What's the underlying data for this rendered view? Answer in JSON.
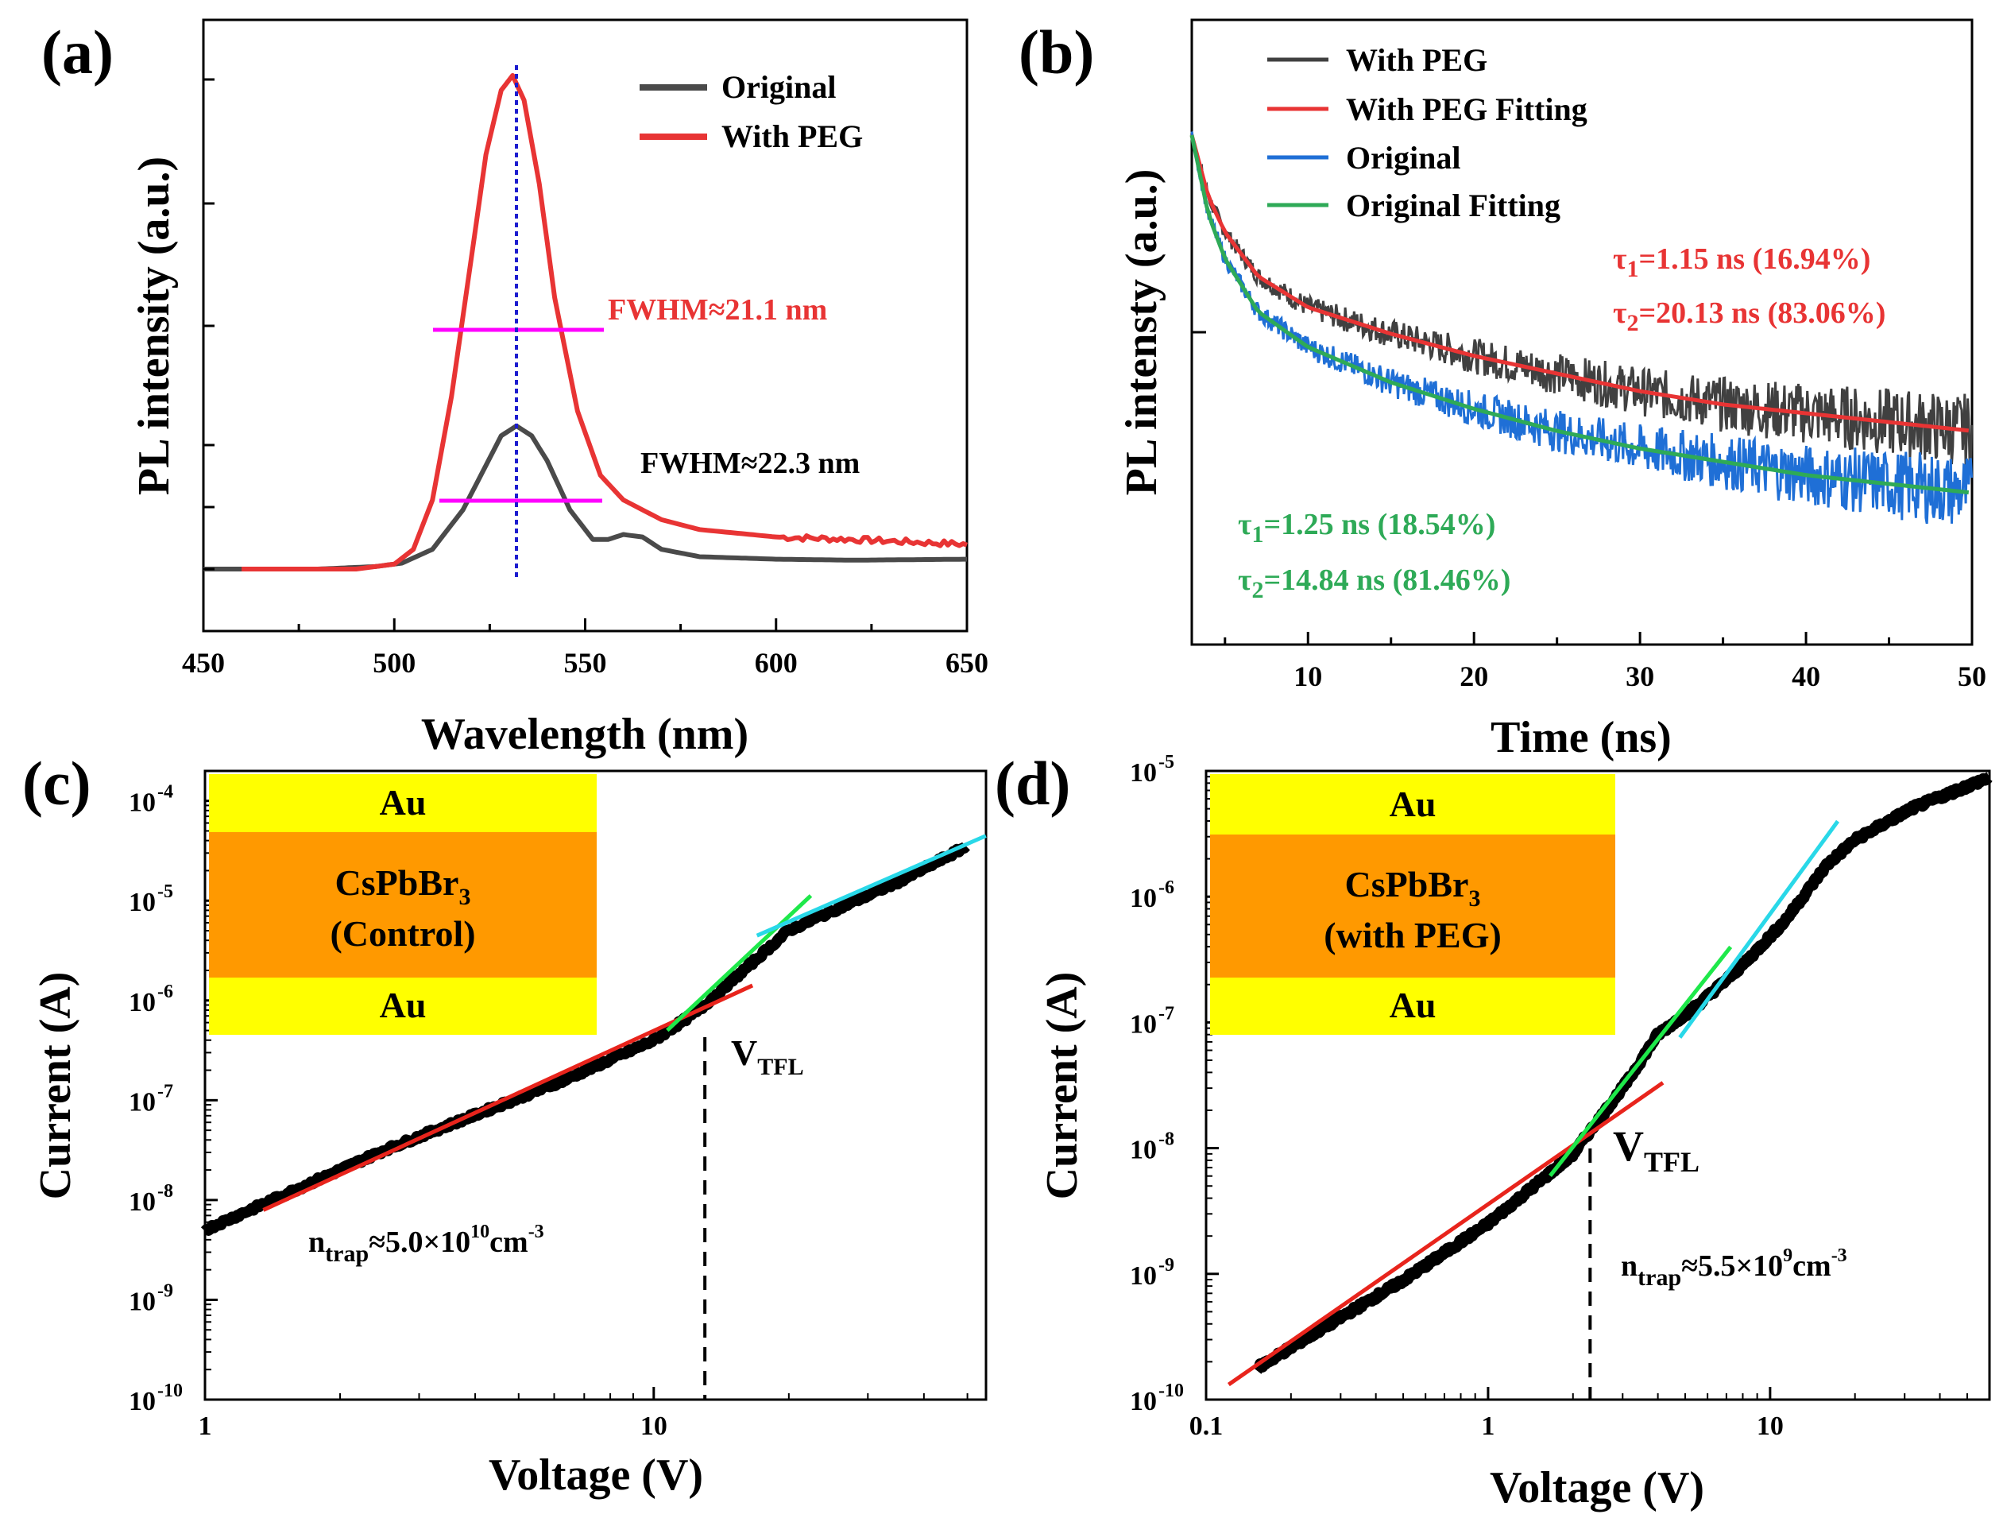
{
  "chart_data": [
    {
      "panel": "(a)",
      "type": "line",
      "xlabel": "Wavelength (nm)",
      "ylabel": "PL intensity (a.u.)",
      "xlim": [
        450,
        650
      ],
      "ylim": [
        -0.1,
        1.1
      ],
      "xticks": [
        450,
        500,
        550,
        600,
        650
      ],
      "peak_wavelength": 532,
      "series": [
        {
          "name": "Original",
          "color": "#4a4a4a",
          "x": [
            450,
            480,
            495,
            502,
            510,
            518,
            524,
            528,
            532,
            536,
            540,
            546,
            552,
            556,
            560,
            565,
            570,
            580,
            600,
            620,
            650
          ],
          "y": [
            0,
            0,
            0.005,
            0.012,
            0.04,
            0.12,
            0.21,
            0.27,
            0.29,
            0.27,
            0.22,
            0.12,
            0.06,
            0.06,
            0.07,
            0.065,
            0.04,
            0.025,
            0.02,
            0.018,
            0.02
          ]
        },
        {
          "name": "With PEG",
          "color": "#e83434",
          "x": [
            460,
            490,
            500,
            505,
            510,
            515,
            520,
            524,
            528,
            531,
            534,
            538,
            542,
            548,
            554,
            560,
            570,
            580,
            600,
            620,
            650
          ],
          "y": [
            0,
            0,
            0.01,
            0.04,
            0.14,
            0.35,
            0.62,
            0.84,
            0.97,
            1.0,
            0.95,
            0.78,
            0.55,
            0.32,
            0.19,
            0.14,
            0.1,
            0.08,
            0.065,
            0.06,
            0.05
          ]
        }
      ],
      "fwhm": [
        {
          "label": "FWHM≈21.1 nm",
          "color": "#e83434",
          "x_from": 512,
          "x_to": 556,
          "level": 0.5
        },
        {
          "label": "FWHM≈22.3 nm",
          "color": "#000000",
          "x_from": 513,
          "x_to": 554,
          "level": 0.145
        }
      ]
    },
    {
      "panel": "(b)",
      "type": "line",
      "xlabel": "Time (ns)",
      "ylabel": "PL intensty (a.u.)",
      "xlim": [
        3,
        50
      ],
      "xticks": [
        10,
        20,
        30,
        40,
        50
      ],
      "series": [
        {
          "name": "With PEG",
          "color": "#404040",
          "noisy": true,
          "x": [
            3,
            4,
            5,
            7,
            10,
            15,
            20,
            25,
            30,
            35,
            40,
            45,
            50
          ],
          "y": [
            1.0,
            0.86,
            0.78,
            0.68,
            0.61,
            0.55,
            0.5,
            0.46,
            0.42,
            0.39,
            0.37,
            0.35,
            0.33
          ]
        },
        {
          "name": "With PEG Fitting",
          "color": "#e83434",
          "x": [
            3,
            4,
            5,
            7,
            10,
            15,
            20,
            25,
            30,
            35,
            40,
            45,
            50
          ],
          "y": [
            1.0,
            0.86,
            0.78,
            0.68,
            0.61,
            0.55,
            0.5,
            0.46,
            0.42,
            0.39,
            0.37,
            0.35,
            0.33
          ]
        },
        {
          "name": "Original",
          "color": "#1f6fd6",
          "noisy": true,
          "x": [
            3,
            4,
            5,
            7,
            10,
            15,
            20,
            25,
            30,
            35,
            40,
            45,
            50
          ],
          "y": [
            1.0,
            0.82,
            0.72,
            0.6,
            0.52,
            0.44,
            0.38,
            0.33,
            0.29,
            0.26,
            0.23,
            0.21,
            0.19
          ]
        },
        {
          "name": "Original Fitting",
          "color": "#2eaa57",
          "x": [
            3,
            4,
            5,
            7,
            10,
            15,
            20,
            25,
            30,
            35,
            40,
            45,
            50
          ],
          "y": [
            1.0,
            0.82,
            0.72,
            0.6,
            0.52,
            0.44,
            0.38,
            0.33,
            0.29,
            0.26,
            0.23,
            0.21,
            0.19
          ]
        }
      ],
      "annotations": [
        {
          "sym": "τ",
          "idx": "1",
          "text": "=1.15 ns (16.94%)",
          "color": "#e83434"
        },
        {
          "sym": "τ",
          "idx": "2",
          "text": "=20.13 ns (83.06%)",
          "color": "#e83434"
        },
        {
          "sym": "τ",
          "idx": "1",
          "text": "=1.25 ns (18.54%)",
          "color": "#2eaa57"
        },
        {
          "sym": "τ",
          "idx": "2",
          "text": "=14.84 ns (81.46%)",
          "color": "#2eaa57"
        }
      ]
    },
    {
      "panel": "(c)",
      "type": "line",
      "scale": "log-log",
      "xlabel": "Voltage (V)",
      "ylabel": "Current (A)",
      "xlim": [
        1,
        55
      ],
      "xticks": [
        "1",
        "10"
      ],
      "yticks": [
        "-10",
        "-9",
        "-8",
        "-7",
        "-6",
        "-5",
        "-4"
      ],
      "ylim_exp": [
        -10,
        -3.7
      ],
      "series": [
        {
          "name": "I-V",
          "color": "#000000",
          "logx": [
            0,
            0.2,
            0.4,
            0.6,
            0.8,
            1.0,
            1.1,
            1.2,
            1.3,
            1.4,
            1.55,
            1.7
          ],
          "logy": [
            -8.3,
            -7.9,
            -7.5,
            -7.15,
            -6.8,
            -6.4,
            -6.1,
            -5.7,
            -5.3,
            -5.1,
            -4.8,
            -4.45
          ]
        }
      ],
      "fits": [
        {
          "color": "#e8241c",
          "logx": [
            0.13,
            1.22
          ],
          "logy": [
            -8.1,
            -5.85
          ]
        },
        {
          "color": "#1ee84a",
          "logx": [
            1.03,
            1.35
          ],
          "logy": [
            -6.3,
            -4.95
          ]
        },
        {
          "color": "#29d8e8",
          "logx": [
            1.23,
            1.74
          ],
          "logy": [
            -5.35,
            -4.35
          ]
        }
      ],
      "v_tfl": 13,
      "v_tfl_label": "V",
      "v_tfl_sub": "TFL",
      "ntrap": {
        "pre": "n",
        "sub": "trap",
        "mid": "≈5.0×10",
        "sup": "10",
        "unit": "cm",
        "unit_sup": "-3"
      },
      "inset_layers": [
        {
          "label": "Au",
          "color": "#ffff00"
        },
        {
          "label": "CsPbBr",
          "sub": "3",
          "label2": "(Control)",
          "color": "#ff9900"
        },
        {
          "label": "Au",
          "color": "#ffff00"
        }
      ]
    },
    {
      "panel": "(d)",
      "type": "line",
      "scale": "log-log",
      "xlabel": "Voltage (V)",
      "ylabel": "Current (A)",
      "xlim": [
        0.1,
        60
      ],
      "xticks": [
        "0.1",
        "1",
        "10"
      ],
      "yticks": [
        "-10",
        "-9",
        "-8",
        "-7",
        "-6",
        "-5"
      ],
      "ylim_exp": [
        -10,
        -5
      ],
      "series": [
        {
          "name": "I-V",
          "color": "#000000",
          "logx": [
            -0.82,
            -0.6,
            -0.3,
            0.0,
            0.3,
            0.4,
            0.5,
            0.6,
            0.75,
            0.9,
            1.05,
            1.2,
            1.3,
            1.5,
            1.78
          ],
          "logy": [
            -9.75,
            -9.45,
            -9.05,
            -8.6,
            -8.05,
            -7.75,
            -7.45,
            -7.1,
            -6.85,
            -6.55,
            -6.2,
            -5.75,
            -5.55,
            -5.3,
            -5.05
          ]
        }
      ],
      "fits": [
        {
          "color": "#e8241c",
          "logx": [
            -0.92,
            0.62
          ],
          "logy": [
            -9.88,
            -7.48
          ]
        },
        {
          "color": "#1ee84a",
          "logx": [
            0.22,
            0.86
          ],
          "logy": [
            -8.22,
            -6.4
          ]
        },
        {
          "color": "#29d8e8",
          "logx": [
            0.68,
            1.24
          ],
          "logy": [
            -7.12,
            -5.4
          ]
        }
      ],
      "v_tfl": 2.3,
      "v_tfl_label": "V",
      "v_tfl_sub": "TFL",
      "ntrap": {
        "pre": "n",
        "sub": "trap",
        "mid": "≈5.5×10",
        "sup": "9",
        "unit": "cm",
        "unit_sup": "-3"
      },
      "inset_layers": [
        {
          "label": "Au",
          "color": "#ffff00"
        },
        {
          "label": "CsPbBr",
          "sub": "3",
          "label2": "(with PEG)",
          "color": "#ff9900"
        },
        {
          "label": "Au",
          "color": "#ffff00"
        }
      ]
    }
  ]
}
